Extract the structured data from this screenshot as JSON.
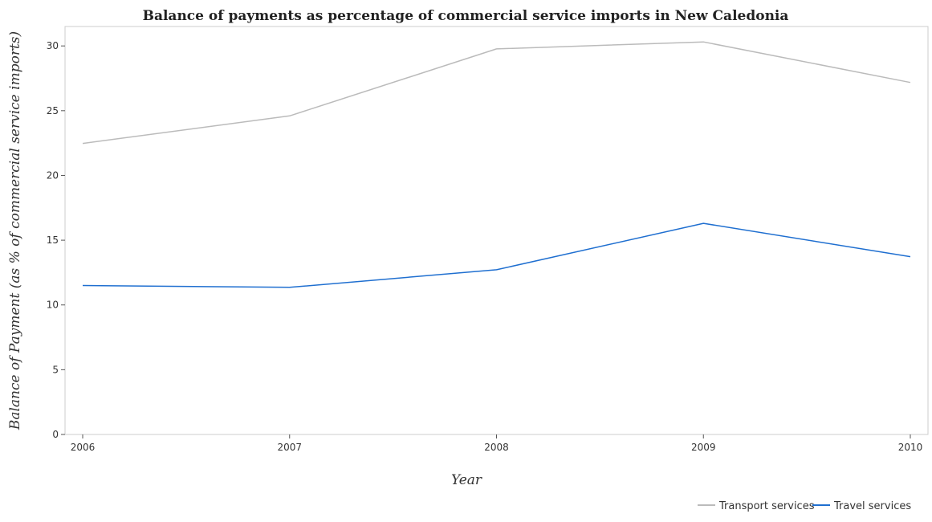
{
  "chart_data": {
    "type": "line",
    "title": "Balance of payments as percentage of commercial service imports in New Caledonia",
    "xlabel": "Year",
    "ylabel": "Balance of Payment (as % of commercial service imports)",
    "x": [
      "2006",
      "2007",
      "2008",
      "2009",
      "2010"
    ],
    "ylim": [
      0,
      31.5
    ],
    "yticks": [
      0,
      5,
      10,
      15,
      20,
      25,
      30
    ],
    "legend_position": "bottom-right",
    "grid": false,
    "series": [
      {
        "name": "Transport services",
        "color": "#bbbbbb",
        "values": [
          22.47,
          24.6,
          29.77,
          30.31,
          27.18
        ]
      },
      {
        "name": "Travel services",
        "color": "#1f6fd0",
        "values": [
          11.5,
          11.36,
          12.72,
          16.3,
          13.73
        ]
      }
    ]
  }
}
